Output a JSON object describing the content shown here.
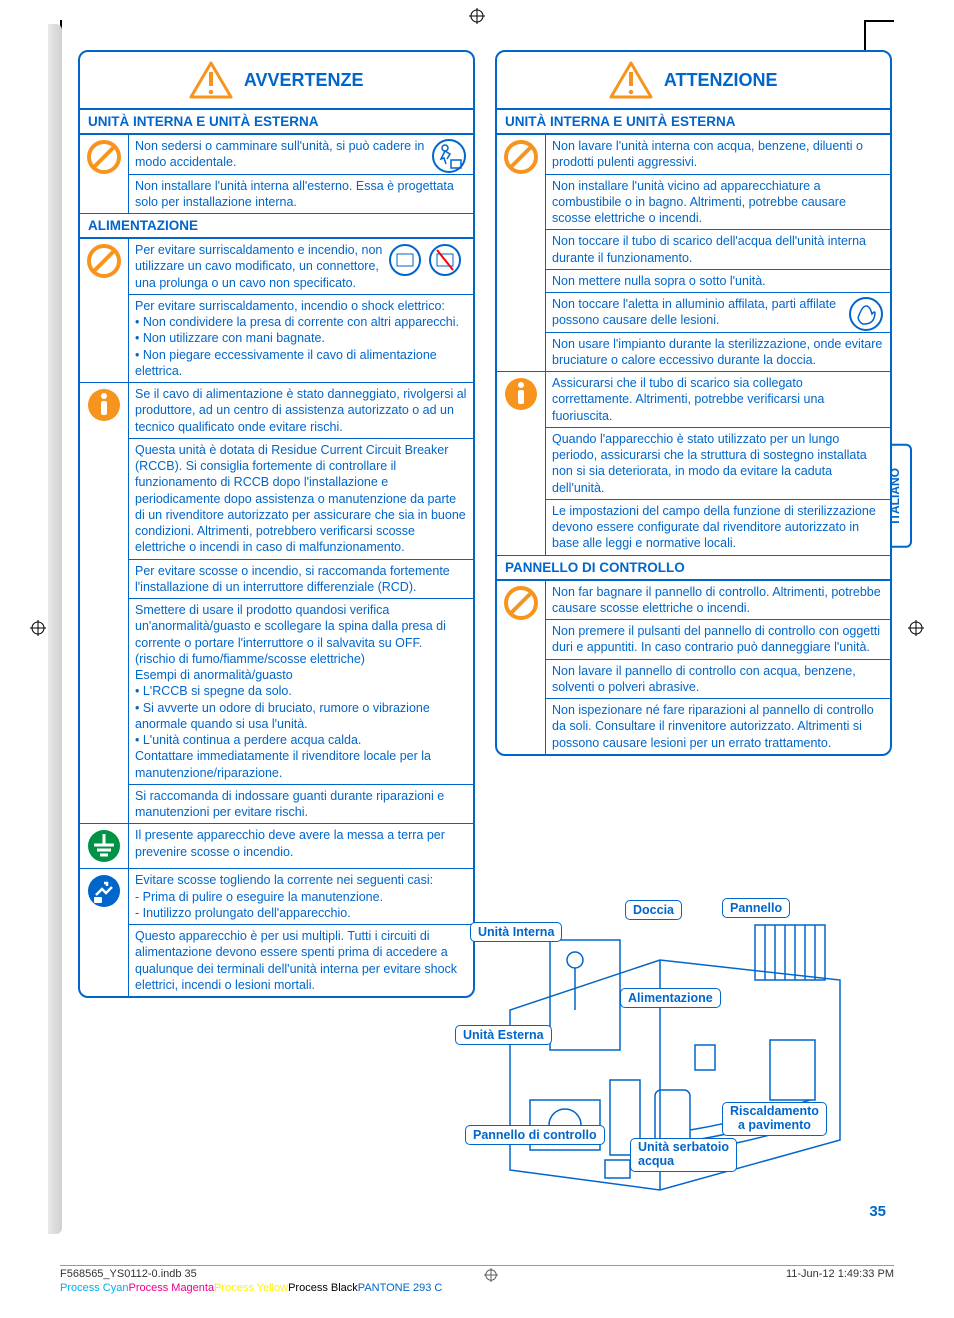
{
  "page_number": "35",
  "side_tab": "ITALIANO",
  "headers": {
    "left": "AVVERTENZE",
    "right": "ATTENZIONE"
  },
  "colors": {
    "primary": "#0066cc",
    "orange": "#f7941d"
  },
  "left_sections": [
    {
      "title": "UNITÀ INTERNA E UNITÀ ESTERNA",
      "rows": [
        {
          "icon": "prohibit",
          "texts": [
            "Non sedersi o camminare sull'unità, si può cadere in modo accidentale.",
            "Non installare l'unità interna all'esterno. Essa è progettata solo per installazione interna."
          ],
          "extra_icon": "fall"
        }
      ]
    },
    {
      "title": "ALIMENTAZIONE",
      "rows": [
        {
          "icon": "prohibit",
          "texts": [
            "Per evitare surriscaldamento e incendio, non utilizzare un cavo modificato, un connettore, una prolunga o un cavo non specificato.",
            "Per evitare surriscaldamento, incendio o shock elettrico:\n• Non condividere la presa di corrente con altri apparecchi.\n• Non utilizzare con mani bagnate.\n• Non piegare eccessivamente il cavo di alimentazione elettrica."
          ],
          "extra_icon": "plugs"
        },
        {
          "icon": "mandatory",
          "texts": [
            "Se il cavo di alimentazione è stato danneggiato, rivolgersi al produttore, ad un centro di assistenza autorizzato o ad un tecnico qualificato onde evitare rischi.",
            "Questa unità è dotata di Residue Current Circuit Breaker (RCCB). Si consiglia fortemente di controllare il funzionamento di RCCB dopo l'installazione e periodicamente dopo assistenza o manutenzione da parte di un rivenditore autorizzato per assicurare che sia in buone condizioni. Altrimenti, potrebbero verificarsi scosse elettriche o incendi in caso di malfunzionamento.",
            "Per evitare scosse o incendio, si raccomanda fortemente l'installazione di un interruttore differenziale (RCD).",
            "Smettere di usare il prodotto quandosi verifica un'anormalità/guasto e scollegare la spina dalla presa di corrente o portare l'interruttore o il salvavita su OFF.\n(rischio di fumo/fiamme/scosse elettriche)\nEsempi di anormalità/guasto\n• L'RCCB si spegne da solo.\n• Si avverte un odore di bruciato, rumore o vibrazione anormale quando si usa l'unità.\n• L'unità continua a perdere acqua calda.\nContattare immediatamente il rivenditore locale per la manutenzione/riparazione.",
            "Si raccomanda di indossare guanti durante riparazioni e manutenzioni per evitare rischi."
          ]
        },
        {
          "icon": "ground",
          "texts": [
            "Il presente apparecchio deve avere la messa a terra per prevenire scosse o incendio."
          ]
        },
        {
          "icon": "unplug",
          "texts": [
            "Evitare scosse togliendo la corrente nei seguenti casi:\n- Prima di pulire o eseguire la manutenzione.\n- Inutilizzo prolungato dell'apparecchio.",
            "Questo apparecchio è per usi multipli. Tutti i circuiti di alimentazione devono essere spenti prima di accedere a qualunque dei terminali dell'unità interna per evitare shock elettrici, incendi o lesioni mortali."
          ]
        }
      ]
    }
  ],
  "right_sections": [
    {
      "title": "UNITÀ INTERNA E UNITÀ ESTERNA",
      "rows": [
        {
          "icon": "prohibit",
          "texts": [
            "Non lavare l'unità interna con acqua, benzene, diluenti o prodotti pulenti aggressivi.",
            "Non installare l'unità vicino ad apparecchiature a combustibile o in bagno. Altrimenti, potrebbe causare scosse elettriche o incendi.",
            "Non toccare il tubo di scarico dell'acqua dell'unità interna durante il funzionamento.",
            "Non mettere nulla sopra o sotto l'unità.",
            "Non toccare l'aletta in alluminio affilata, parti affilate possono causare delle lesioni.",
            "Non usare l'impianto durante la sterilizzazione, onde evitare bruciature o calore eccessivo durante la doccia."
          ],
          "extra_icon_at": 4,
          "extra_icon": "hand"
        },
        {
          "icon": "mandatory",
          "texts": [
            "Assicurarsi che il tubo di scarico sia collegato correttamente. Altrimenti, potrebbe verificarsi una fuoriuscita.",
            "Quando l'apparecchio è stato utilizzato per un lungo periodo, assicurarsi che la struttura di sostegno installata non si sia deteriorata, in modo da evitare la caduta dell'unità.",
            "Le impostazioni del campo della funzione di sterilizzazione devono essere configurate dal rivenditore autorizzato in base alle leggi e normative locali."
          ]
        }
      ]
    },
    {
      "title": "PANNELLO DI CONTROLLO",
      "rows": [
        {
          "icon": "prohibit",
          "texts": [
            "Non far bagnare il pannello di controllo. Altrimenti, potrebbe causare scosse elettriche o incendi.",
            "Non premere il pulsanti del pannello di controllo con oggetti duri e appuntiti. In caso contrario può danneggiare l'unità.",
            "Non lavare il pannello di controllo con acqua, benzene, solventi o polveri abrasive.",
            "Non ispezionare né fare riparazioni al pannello di controllo da soli. Consultare il rinvenitore autorizzato. Altrimenti si possono causare lesioni per un errato trattamento."
          ]
        }
      ]
    }
  ],
  "diagram_labels": {
    "unita_interna": "Unità Interna",
    "doccia": "Doccia",
    "pannello": "Pannello",
    "alimentazione": "Alimentazione",
    "unita_esterna": "Unità Esterna",
    "pannello_controllo": "Pannello di controllo",
    "unita_serbatoio": "Unità serbatoio\nacqua",
    "riscaldamento": "Riscaldamento\na pavimento"
  },
  "footer": {
    "file": "F568565_YS0112-0.indb   35",
    "timestamp": "11-Jun-12   1:49:33 PM",
    "colors": [
      "Process Cyan",
      "Process Magenta",
      "Process Yellow",
      "Process Black",
      "PANTONE 293 C"
    ]
  }
}
